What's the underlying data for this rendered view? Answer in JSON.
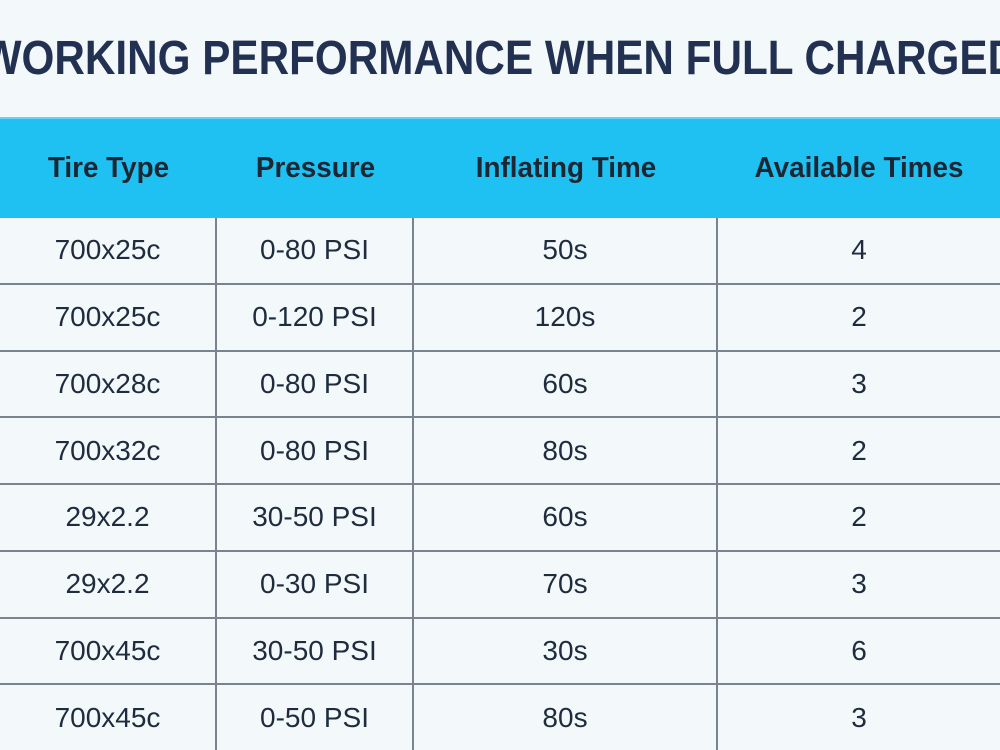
{
  "title": "WORKING PERFORMANCE WHEN FULL CHARGED",
  "table": {
    "columns": [
      "Tire Type",
      "Pressure",
      "Inflating Time",
      "Available Times"
    ],
    "rows": [
      [
        "700x25c",
        "0-80 PSI",
        "50s",
        "4"
      ],
      [
        "700x25c",
        "0-120 PSI",
        "120s",
        "2"
      ],
      [
        "700x28c",
        "0-80 PSI",
        "60s",
        "3"
      ],
      [
        "700x32c",
        "0-80 PSI",
        "80s",
        "2"
      ],
      [
        "29x2.2",
        "30-50 PSI",
        "60s",
        "2"
      ],
      [
        "29x2.2",
        "0-30 PSI",
        "70s",
        "3"
      ],
      [
        "700x45c",
        "30-50 PSI",
        "30s",
        "6"
      ],
      [
        "700x45c",
        "0-50 PSI",
        "80s",
        "3"
      ]
    ]
  },
  "colors": {
    "page_bg": "#f3f8fb",
    "header_bg": "#1fc1f3",
    "header_top_edge": "#62d4f7",
    "title_text": "#223151",
    "header_text": "#1d2733",
    "cell_text": "#1e2c3e",
    "grid_line": "#79848e"
  }
}
